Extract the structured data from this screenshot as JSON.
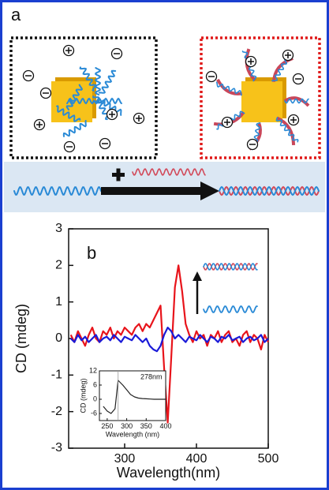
{
  "diagram": {
    "label": "a"
  },
  "chart_data": [
    {
      "type": "line",
      "annotation": "b",
      "x_label": "Wavelength(nm)",
      "y_label": "CD (mdeg)",
      "x": [
        225,
        230,
        235,
        240,
        245,
        250,
        255,
        260,
        265,
        270,
        275,
        280,
        285,
        290,
        295,
        300,
        305,
        310,
        315,
        320,
        325,
        330,
        335,
        340,
        345,
        350,
        355,
        360,
        365,
        370,
        375,
        380,
        385,
        390,
        395,
        400,
        405,
        410,
        415,
        420,
        425,
        430,
        435,
        440,
        445,
        450,
        455,
        460,
        465,
        470,
        475,
        480,
        485,
        490,
        495,
        500
      ],
      "series": [
        {
          "color": "#e8141b",
          "values": [
            0.1,
            -0.1,
            0.2,
            0.0,
            -0.2,
            0.1,
            0.3,
            0.0,
            -0.1,
            0.2,
            0.1,
            0.3,
            0.0,
            0.2,
            0.1,
            0.3,
            0.2,
            0.1,
            0.3,
            0.4,
            0.2,
            0.4,
            0.3,
            0.5,
            0.7,
            0.9,
            -0.8,
            -2.3,
            -0.5,
            1.4,
            2.0,
            1.3,
            0.4,
            0.1,
            -0.1,
            0.2,
            0.0,
            0.1,
            -0.2,
            0.1,
            0.0,
            0.2,
            -0.1,
            0.1,
            0.2,
            -0.1,
            0.0,
            -0.2,
            0.1,
            0.2,
            -0.1,
            0.1,
            0.0,
            -0.3,
            0.1,
            -0.1
          ]
        },
        {
          "color": "#1a1ad8",
          "values": [
            0.0,
            -0.1,
            0.1,
            -0.05,
            0.05,
            -0.1,
            0.0,
            0.1,
            -0.1,
            0.0,
            0.05,
            -0.05,
            0.1,
            0.0,
            -0.1,
            0.05,
            0.0,
            -0.05,
            0.1,
            0.0,
            -0.1,
            0.0,
            -0.2,
            -0.3,
            -0.35,
            -0.2,
            0.1,
            0.3,
            0.2,
            0.0,
            0.1,
            0.0,
            -0.1,
            0.05,
            0.0,
            -0.05,
            0.1,
            0.0,
            -0.1,
            0.05,
            0.0,
            -0.1,
            0.05,
            0.0,
            0.1,
            -0.05,
            0.0,
            0.05,
            -0.1,
            0.0,
            0.05,
            -0.05,
            0.0,
            0.1,
            -0.1,
            0.0
          ]
        }
      ],
      "xlim": [
        222,
        500
      ],
      "xticks": [
        300,
        400,
        500
      ],
      "ylim": [
        -3,
        3
      ],
      "yticks": [
        -3,
        -2,
        -1,
        0,
        1,
        2,
        3
      ]
    },
    {
      "type": "line",
      "annotation": "278nm",
      "x_label": "Wavelength (nm)",
      "y_label": "CD (mdeg)",
      "x": [
        240,
        250,
        260,
        270,
        278,
        290,
        300,
        310,
        320,
        330,
        340,
        350,
        360,
        370,
        380,
        390,
        400
      ],
      "series": [
        {
          "color": "#222222",
          "values": [
            -3,
            -5,
            -6,
            -4,
            8,
            6,
            4,
            2,
            1,
            0.5,
            0.3,
            0.2,
            0.1,
            0,
            0,
            0,
            0
          ]
        }
      ],
      "xlim": [
        230,
        400
      ],
      "xticks": [
        250,
        300,
        350,
        400
      ],
      "ylim": [
        -9,
        12
      ],
      "yticks": [
        -6,
        0,
        6,
        12
      ]
    }
  ]
}
